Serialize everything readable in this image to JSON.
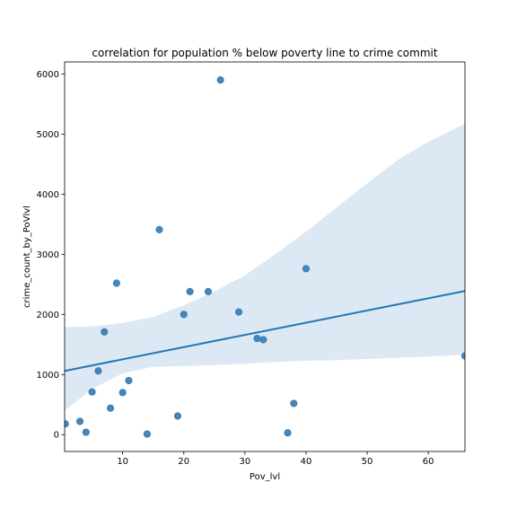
{
  "chart_data": {
    "type": "scatter",
    "title": "correlation for population % below poverty line to crime commit",
    "xlabel": "Pov_lvl",
    "ylabel": "crime_count_by_PoVlvl",
    "xlim": [
      0.5,
      66
    ],
    "ylim": [
      -280,
      6200
    ],
    "xticks": [
      10,
      20,
      30,
      40,
      50,
      60
    ],
    "yticks": [
      0,
      1000,
      2000,
      3000,
      4000,
      5000,
      6000
    ],
    "grid": false,
    "legend": "none",
    "colors": {
      "points": "#3d7fb4",
      "regression_line": "#1f77b4",
      "confidence_band": "#dce8f3"
    },
    "points": [
      {
        "x": 0.6,
        "y": 180
      },
      {
        "x": 3,
        "y": 220
      },
      {
        "x": 4,
        "y": 40
      },
      {
        "x": 5,
        "y": 710
      },
      {
        "x": 6,
        "y": 1060
      },
      {
        "x": 7,
        "y": 1710
      },
      {
        "x": 8,
        "y": 440
      },
      {
        "x": 9,
        "y": 2520
      },
      {
        "x": 10,
        "y": 700
      },
      {
        "x": 11,
        "y": 900
      },
      {
        "x": 14,
        "y": 10
      },
      {
        "x": 16,
        "y": 3410
      },
      {
        "x": 19,
        "y": 310
      },
      {
        "x": 20,
        "y": 2000
      },
      {
        "x": 21,
        "y": 2380
      },
      {
        "x": 24,
        "y": 2380
      },
      {
        "x": 26,
        "y": 5900
      },
      {
        "x": 29,
        "y": 2040
      },
      {
        "x": 32,
        "y": 1600
      },
      {
        "x": 33,
        "y": 1580
      },
      {
        "x": 37,
        "y": 30
      },
      {
        "x": 38,
        "y": 520
      },
      {
        "x": 40,
        "y": 2760
      },
      {
        "x": 66,
        "y": 1310
      }
    ],
    "regression_line": {
      "x": [
        0.5,
        66
      ],
      "y": [
        1060,
        2390
      ]
    },
    "confidence_band": {
      "x": [
        0.5,
        5,
        10,
        15,
        20,
        25,
        30,
        35,
        40,
        45,
        50,
        55,
        60,
        66
      ],
      "upper": [
        1790,
        1800,
        1860,
        1960,
        2150,
        2380,
        2650,
        3000,
        3380,
        3780,
        4180,
        4570,
        4870,
        5170
      ],
      "lower": [
        400,
        760,
        1020,
        1130,
        1140,
        1160,
        1180,
        1210,
        1230,
        1240,
        1260,
        1280,
        1300,
        1330
      ]
    }
  }
}
